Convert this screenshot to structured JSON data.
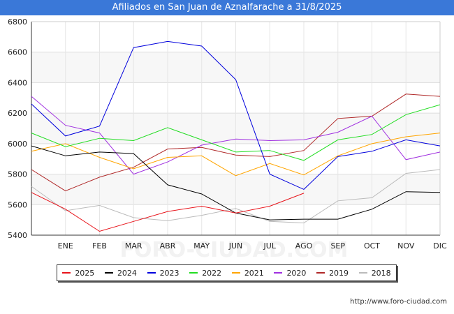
{
  "header": {
    "title": "Afiliados en San Juan de Aznalfarache a 31/8/2025"
  },
  "footer": {
    "source": "http://www.foro-ciudad.com"
  },
  "watermark": "FORO-CIUDAD.COM",
  "chart_data": {
    "type": "line",
    "title": "Afiliados en San Juan de Aznalfarache a 31/8/2025",
    "xlabel": "",
    "ylabel": "",
    "x_ticks": [
      "ENE",
      "FEB",
      "MAR",
      "ABR",
      "MAY",
      "JUN",
      "JUL",
      "AGO",
      "SEP",
      "OCT",
      "NOV",
      "DIC"
    ],
    "ylim": [
      5400,
      6800
    ],
    "y_ticks": [
      5400,
      5600,
      5800,
      6000,
      6200,
      6400,
      6600,
      6800
    ],
    "grid": true,
    "legend_position": "bottom",
    "series": [
      {
        "name": "2025",
        "color": "#e8131a",
        "values": [
          5680,
          5570,
          5425,
          5490,
          5555,
          5590,
          5545,
          5590,
          5675
        ]
      },
      {
        "name": "2024",
        "color": "#000000",
        "values": [
          5985,
          5920,
          5945,
          5935,
          5730,
          5670,
          5545,
          5500,
          5505,
          5505,
          5570,
          5685,
          5680
        ]
      },
      {
        "name": "2023",
        "color": "#0000dd",
        "values": [
          6260,
          6050,
          6115,
          6630,
          6670,
          6640,
          6420,
          5800,
          5700,
          5915,
          5950,
          6025,
          5985
        ]
      },
      {
        "name": "2022",
        "color": "#22dd22",
        "values": [
          6070,
          5980,
          6035,
          6020,
          6105,
          6025,
          5945,
          5955,
          5890,
          6025,
          6060,
          6190,
          6255
        ]
      },
      {
        "name": "2021",
        "color": "#ffa500",
        "values": [
          5950,
          6000,
          5910,
          5835,
          5910,
          5920,
          5790,
          5870,
          5795,
          5920,
          6000,
          6045,
          6070
        ]
      },
      {
        "name": "2020",
        "color": "#a030e0",
        "values": [
          6310,
          6120,
          6070,
          5800,
          5880,
          5990,
          6030,
          6020,
          6025,
          6075,
          6180,
          5895,
          5945
        ]
      },
      {
        "name": "2019",
        "color": "#b02828",
        "values": [
          5830,
          5690,
          5780,
          5845,
          5965,
          5975,
          5925,
          5915,
          5955,
          6165,
          6180,
          6325,
          6310
        ]
      },
      {
        "name": "2018",
        "color": "#bbbbbb",
        "values": [
          5720,
          5560,
          5595,
          5515,
          5495,
          5530,
          5575,
          5490,
          5480,
          5625,
          5645,
          5805,
          5830
        ]
      }
    ]
  }
}
